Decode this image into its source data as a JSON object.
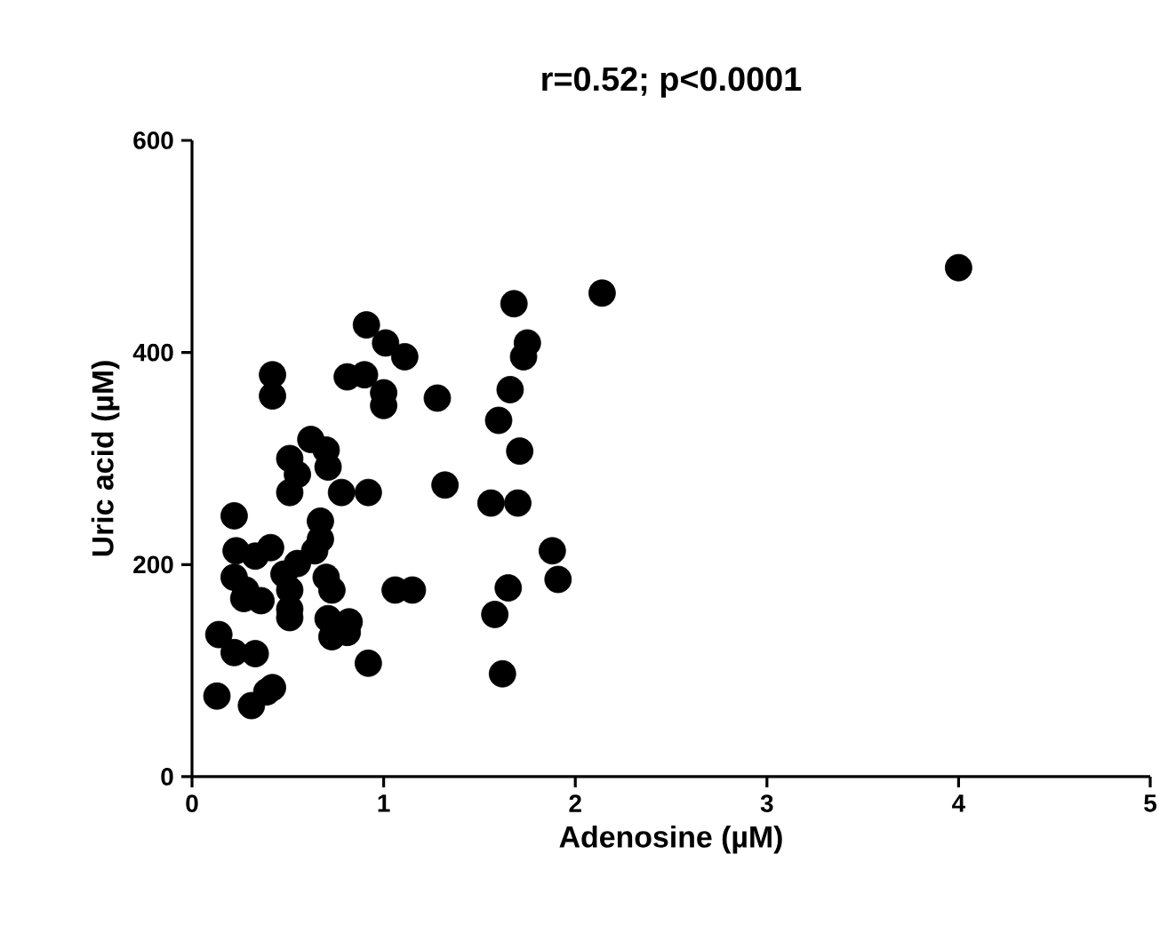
{
  "chart_data": {
    "type": "scatter",
    "title": "r=0.52; p<0.0001",
    "xlabel": "Adenosine (µM)",
    "ylabel": "Uric acid (µM)",
    "x": [
      0.91,
      1.01,
      1.11,
      0.42,
      0.42,
      0.81,
      0.9,
      1.0,
      1.0,
      1.28,
      0.62,
      0.7,
      0.51,
      0.71,
      0.55,
      0.51,
      0.78,
      0.92,
      1.32,
      0.22,
      0.67,
      0.67,
      0.23,
      0.41,
      0.33,
      0.55,
      0.64,
      0.22,
      0.48,
      0.7,
      0.28,
      0.51,
      0.73,
      0.27,
      0.36,
      0.51,
      0.51,
      1.06,
      1.15,
      0.71,
      0.82,
      0.73,
      0.81,
      0.14,
      0.22,
      0.33,
      0.92,
      0.42,
      0.39,
      0.31,
      0.13,
      1.68,
      2.14,
      1.75,
      1.73,
      1.66,
      1.6,
      1.71,
      1.56,
      1.7,
      1.88,
      1.91,
      1.65,
      1.58,
      1.62,
      4.0
    ],
    "values": [
      426,
      409,
      396,
      379,
      359,
      377,
      379,
      362,
      350,
      357,
      318,
      308,
      300,
      292,
      285,
      268,
      268,
      268,
      275,
      246,
      241,
      224,
      213,
      216,
      208,
      201,
      213,
      188,
      191,
      188,
      176,
      176,
      176,
      168,
      166,
      158,
      150,
      176,
      176,
      149,
      146,
      132,
      136,
      134,
      117,
      116,
      107,
      84,
      80,
      67,
      76,
      446,
      456,
      409,
      396,
      365,
      336,
      307,
      258,
      258,
      213,
      186,
      178,
      153,
      97,
      480
    ],
    "color": "#000000",
    "xlim": [
      0,
      5
    ],
    "ylim": [
      0,
      600
    ],
    "xticks": [
      0,
      1,
      2,
      3,
      4,
      5
    ],
    "yticks": [
      0,
      200,
      400,
      600
    ]
  }
}
